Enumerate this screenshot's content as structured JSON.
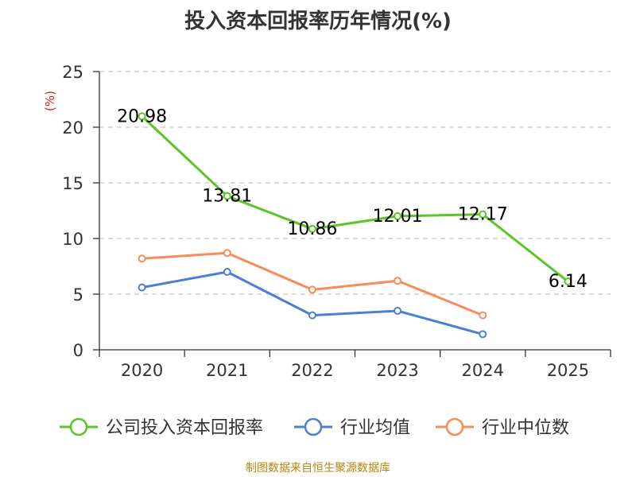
{
  "chart_data": {
    "type": "line",
    "title": "投入资本回报率历年情况(%)",
    "ylabel": "(%)",
    "xlabel": "",
    "categories": [
      "2020",
      "2021",
      "2022",
      "2023",
      "2024",
      "2025"
    ],
    "ylim": [
      0,
      25
    ],
    "yticks": [
      0,
      5,
      10,
      15,
      20,
      25
    ],
    "grid": true,
    "legend_position": "bottom",
    "series": [
      {
        "name": "公司投入资本回报率",
        "color": "#5cc424",
        "values": [
          20.98,
          13.81,
          10.86,
          12.01,
          12.17,
          6.14
        ],
        "labels": [
          "20.98",
          "13.81",
          "10.86",
          "12.01",
          "12.17",
          "6.14"
        ],
        "show_labels": true
      },
      {
        "name": "行业均值",
        "color": "#4a7fd9",
        "values": [
          5.6,
          7.0,
          3.1,
          3.5,
          1.4,
          null
        ],
        "show_labels": false
      },
      {
        "name": "行业中位数",
        "color": "#f58c5a",
        "values": [
          8.2,
          8.7,
          5.4,
          6.2,
          3.1,
          null
        ],
        "show_labels": false
      }
    ]
  },
  "footer": {
    "source": "制图数据来自恒生聚源数据库"
  }
}
